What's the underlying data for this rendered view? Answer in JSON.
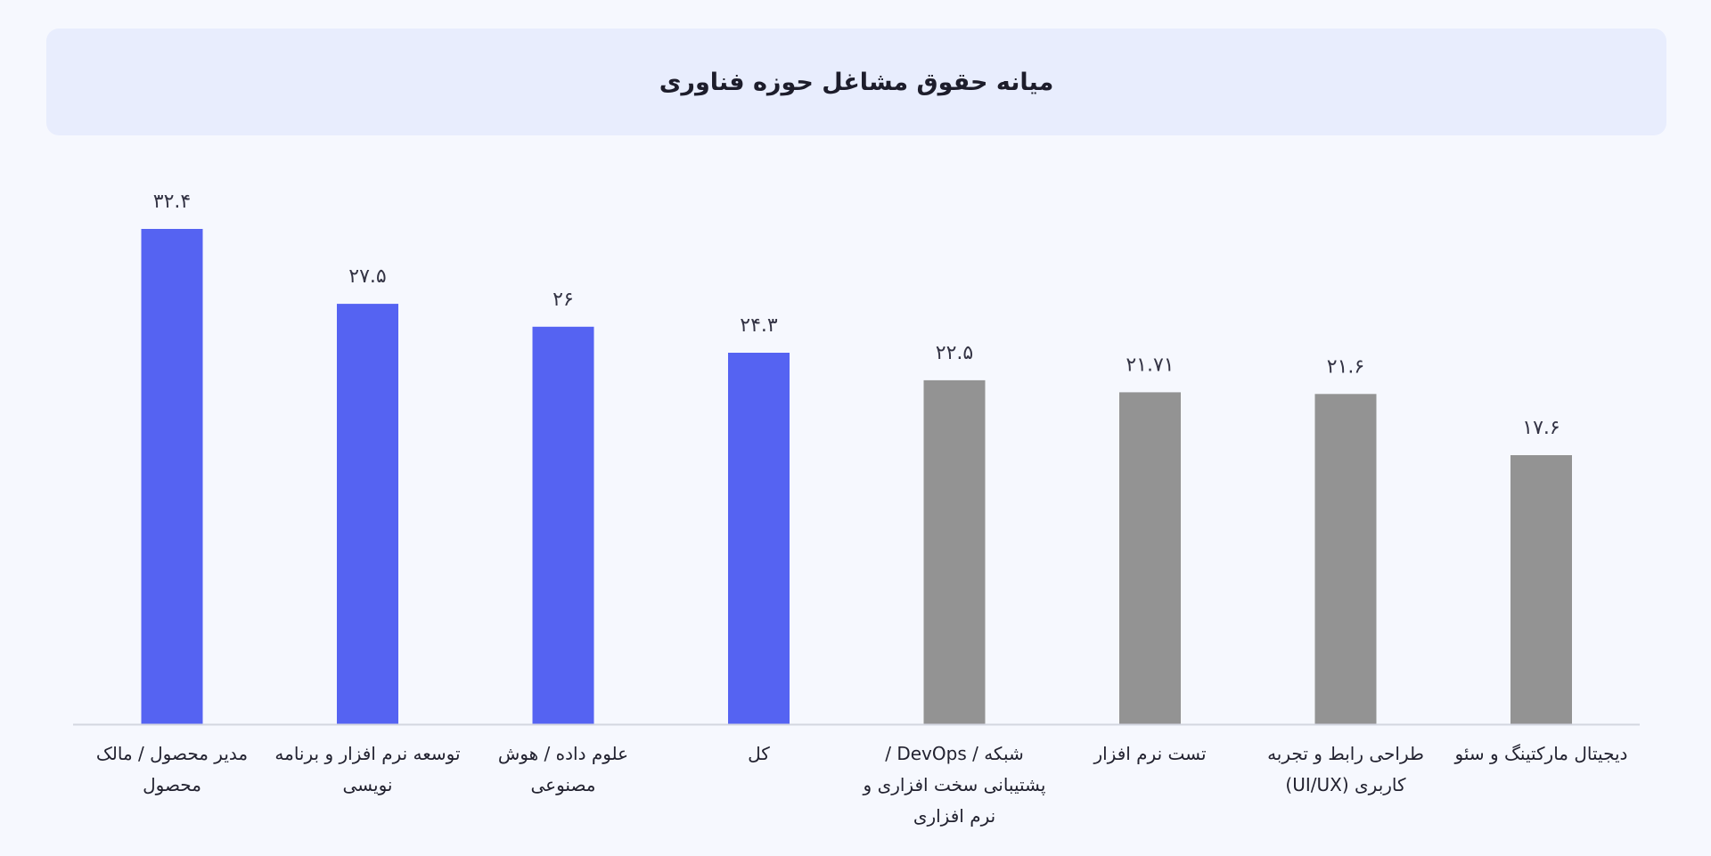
{
  "chart_data": {
    "type": "bar",
    "title": "میانه حقوق مشاغل حوزه فناوری",
    "xlabel": "",
    "ylabel": "",
    "ylim": [
      0,
      32.4
    ],
    "grid": false,
    "legend": "none",
    "categories": [
      "مدیر محصول / مالک محصول",
      "توسعه نرم افزار و برنامه نویسی",
      "علوم داده / هوش مصنوعی",
      "کل",
      "شبکه / DevOps / پشتیبانی سخت افزاری و نرم افزاری",
      "تست نرم افزار",
      "طراحی رابط و تجربه کاربری (UI/UX)",
      "دیجیتال مارکتینگ و سئو"
    ],
    "values": [
      32.4,
      27.5,
      26,
      24.3,
      22.5,
      21.71,
      21.6,
      17.6
    ],
    "value_labels": [
      "۳۲.۴",
      "۲۷.۵",
      "۲۶",
      "۲۴.۳",
      "۲۲.۵",
      "۲۱.۷۱",
      "۲۱.۶",
      "۱۷.۶"
    ],
    "colors": [
      "#5563f2",
      "#5563f2",
      "#5563f2",
      "#5563f2",
      "#939393",
      "#939393",
      "#939393",
      "#939393"
    ],
    "axis_color": "#d3d6e0"
  }
}
